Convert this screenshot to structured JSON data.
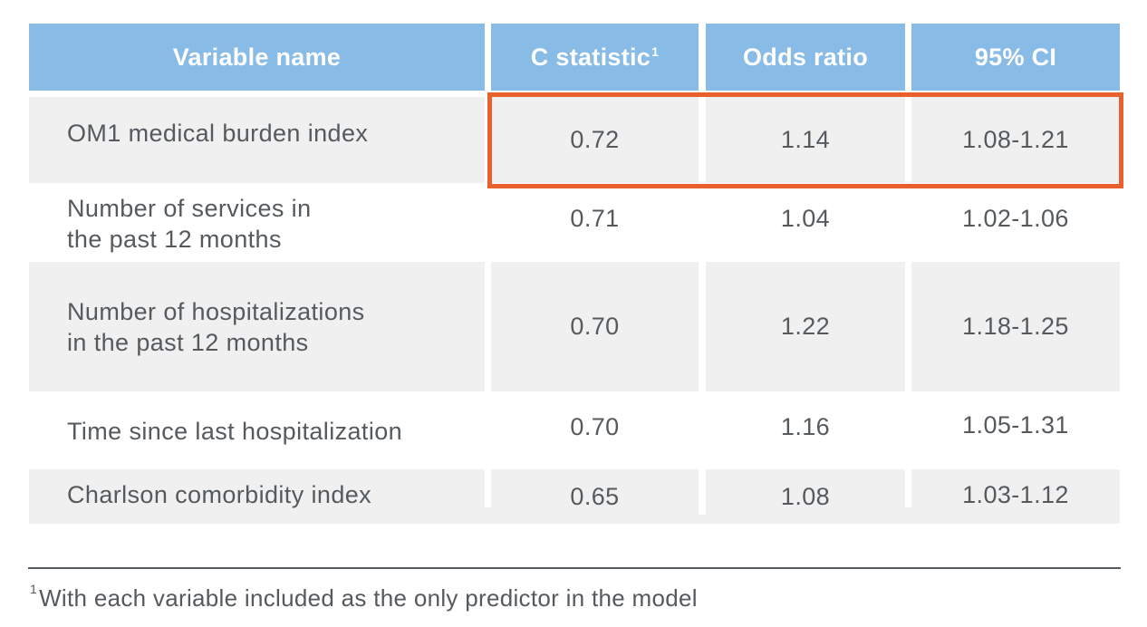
{
  "table": {
    "headers": {
      "variable": "Variable name",
      "c_stat": "C statistic",
      "c_stat_sup": "1",
      "odds": "Odds ratio",
      "ci": "95% CI"
    },
    "rows": [
      {
        "name": "OM1 medical burden index",
        "c": "0.72",
        "or": "1.14",
        "ci": "1.08-1.21"
      },
      {
        "name_line1": "Number of services in",
        "name_line2": "the past 12 months",
        "c": "0.71",
        "or": "1.04",
        "ci": "1.02-1.06"
      },
      {
        "name_line1": "Number of hospitalizations",
        "name_line2": "in the past 12 months",
        "c": "0.70",
        "or": "1.22",
        "ci": "1.18-1.25"
      },
      {
        "name": "Time since last hospitalization",
        "c": "0.70",
        "or": "1.16",
        "ci": "1.05-1.31"
      },
      {
        "name": "Charlson comorbidity index",
        "c": "0.65",
        "or": "1.08",
        "ci": "1.03-1.12"
      }
    ]
  },
  "footnote": {
    "marker": "1",
    "text": "With each variable included as the only predictor in the model"
  },
  "colors": {
    "header_bg": "#88bbe6",
    "shaded_row": "#f0f0f0",
    "highlight_border": "#e8612c",
    "text": "#555a5f"
  }
}
